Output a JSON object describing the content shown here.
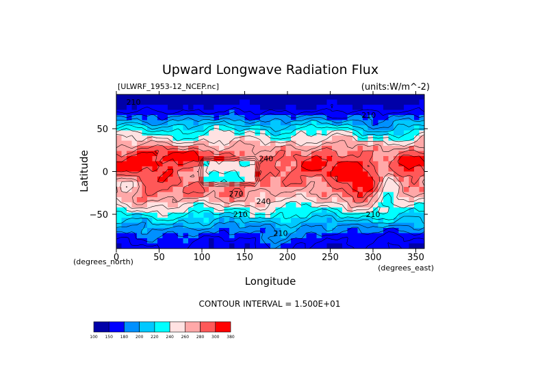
{
  "chart_data": {
    "type": "heatmap",
    "title": "Upward Longwave Radiation Flux",
    "file_label": "[ULWRF_1953-12_NCEP.nc]",
    "units_label": "(units:W/m^-2)",
    "xlabel": "Longitude",
    "ylabel": "Latitude",
    "x_unit_label": "(degrees_east)",
    "y_unit_label": "(degrees_north)",
    "xlim": [
      0,
      360
    ],
    "ylim": [
      -90,
      90
    ],
    "x_ticks": [
      0,
      50,
      100,
      150,
      200,
      250,
      300,
      350
    ],
    "x_tick_labels": [
      "0",
      "50",
      "100",
      "150",
      "200",
      "250",
      "300",
      "350"
    ],
    "y_ticks": [
      50,
      0,
      -50
    ],
    "y_tick_labels": [
      "50",
      "0",
      "−50"
    ],
    "contour_interval_text": "CONTOUR INTERVAL = 1.500E+01",
    "contour_labels": [
      {
        "text": "210",
        "lon": 20,
        "lat": 78
      },
      {
        "text": "210",
        "lon": 295,
        "lat": 63
      },
      {
        "text": "240",
        "lon": 175,
        "lat": 12
      },
      {
        "text": "270",
        "lon": 140,
        "lat": -29
      },
      {
        "text": "240",
        "lon": 172,
        "lat": -38
      },
      {
        "text": "210",
        "lon": 145,
        "lat": -53
      },
      {
        "text": "210",
        "lon": 300,
        "lat": -53
      },
      {
        "text": "210",
        "lon": 192,
        "lat": -75
      }
    ],
    "colorbar": {
      "levels": [
        "100",
        "150",
        "180",
        "200",
        "220",
        "240",
        "260",
        "280",
        "300",
        "380"
      ],
      "colors": [
        "#0000a8",
        "#0000ff",
        "#0090ff",
        "#00c8ff",
        "#00ffff",
        "#ffe2e2",
        "#ffa8a8",
        "#ff5858",
        "#ff0000"
      ]
    }
  }
}
